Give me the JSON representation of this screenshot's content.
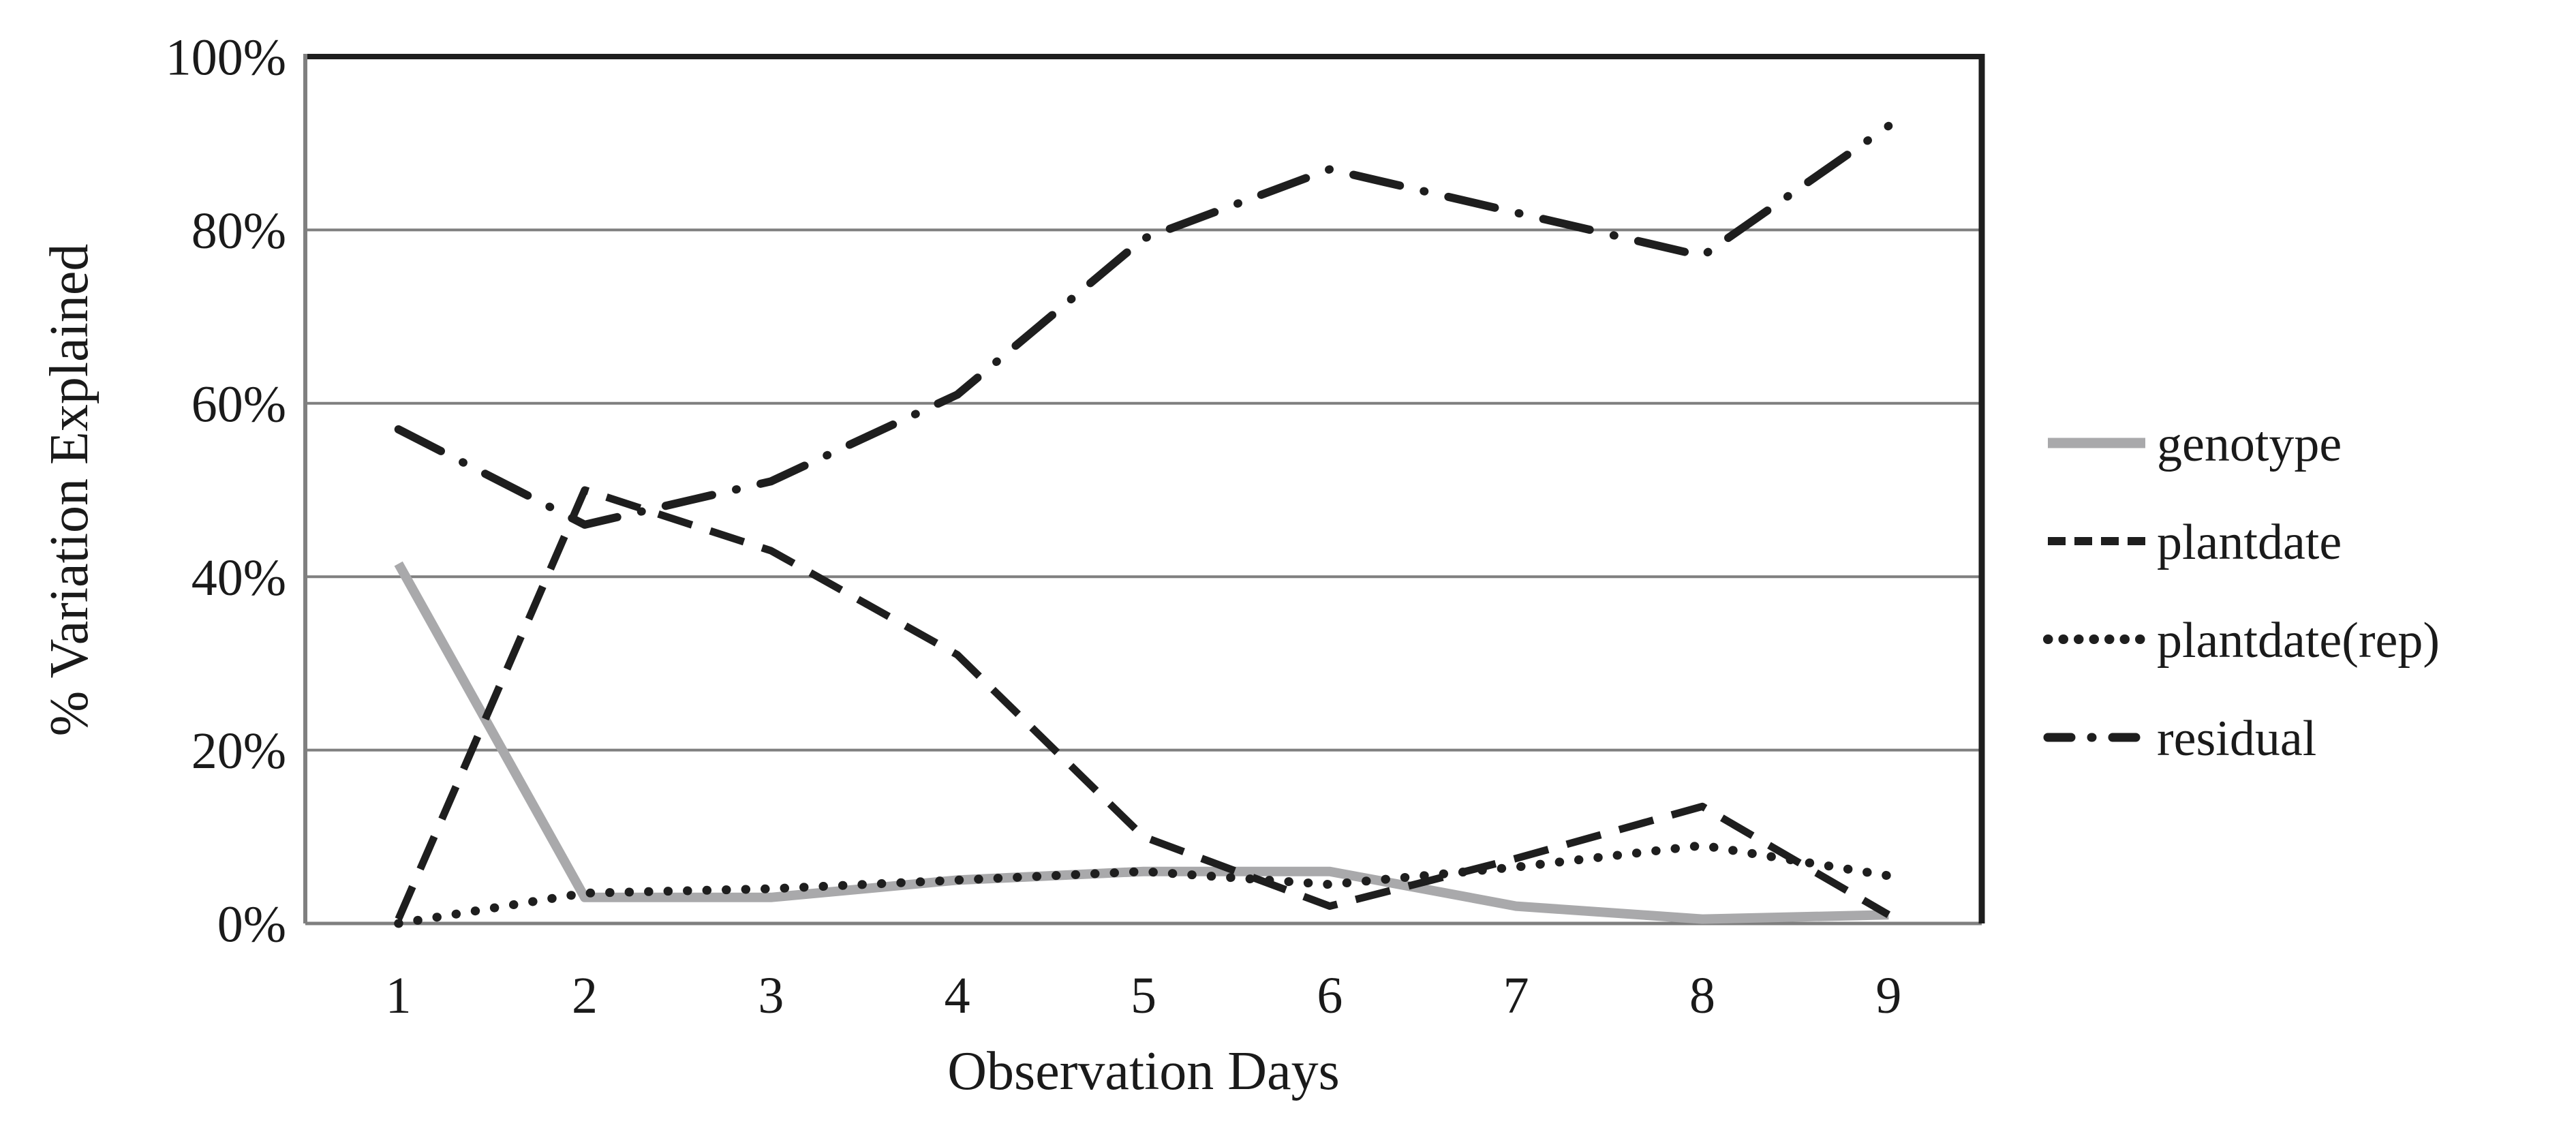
{
  "chart_data": {
    "type": "line",
    "title": "",
    "xlabel": "Observation Days",
    "ylabel": "% Variation Explained",
    "x": [
      1,
      2,
      3,
      4,
      5,
      6,
      7,
      8,
      9
    ],
    "xticks": [
      "1",
      "2",
      "3",
      "4",
      "5",
      "6",
      "7",
      "8",
      "9"
    ],
    "yticks": [
      "0%",
      "20%",
      "40%",
      "60%",
      "80%",
      "100%"
    ],
    "ylim": [
      0,
      100
    ],
    "ytick_step": 20,
    "grid": true,
    "legend_position": "right-middle",
    "colors": {
      "background": "#ffffff",
      "gridline": "#7f7f7f",
      "axis_line": "#7f7f7f",
      "border": "#1e1e1e",
      "text": "#1a1a1a",
      "series_gray": "#a9a9ab",
      "series_black": "#1e1e1e"
    },
    "series": [
      {
        "name": "genotype",
        "style": "solid",
        "color": "#a9a9ab",
        "width": 14,
        "values": [
          41.5,
          3,
          3,
          5,
          6,
          6,
          2,
          0.5,
          1
        ]
      },
      {
        "name": "plantdate",
        "style": "dashed",
        "color": "#1e1e1e",
        "width": 11,
        "values": [
          0.5,
          50,
          43,
          31,
          10,
          2,
          7.5,
          13.5,
          1
        ]
      },
      {
        "name": "plantdate(rep)",
        "style": "dotted",
        "color": "#1e1e1e",
        "width": 13,
        "values": [
          0,
          3.5,
          4,
          5,
          6,
          4.5,
          6.5,
          9,
          5.5
        ]
      },
      {
        "name": "residual",
        "style": "dash-dot",
        "color": "#1e1e1e",
        "width": 12,
        "values": [
          57,
          46,
          51,
          61,
          79,
          87,
          82,
          77,
          92
        ]
      }
    ]
  }
}
